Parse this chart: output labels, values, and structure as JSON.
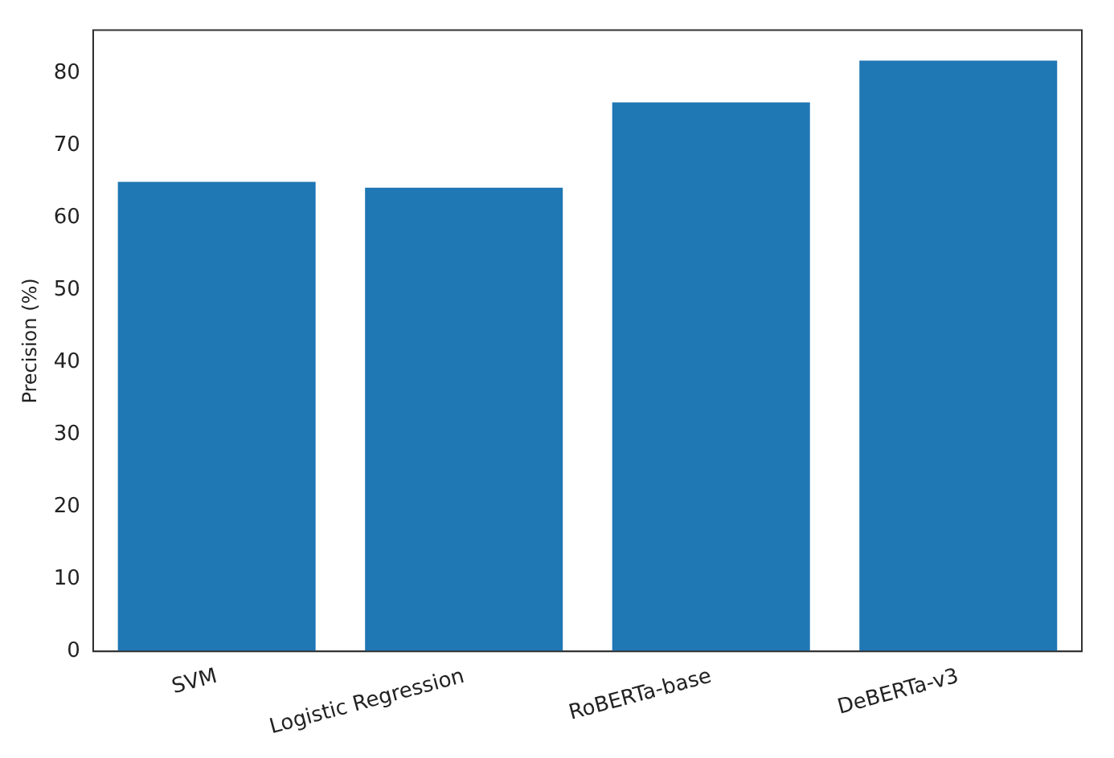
{
  "chart_data": {
    "type": "bar",
    "ylabel": "Precision (%)",
    "categories": [
      "SVM",
      "Logistic Regression",
      "RoBERTa-base",
      "DeBERTa-v3"
    ],
    "values": [
      65,
      64.2,
      76,
      81.8
    ],
    "color": "#1f77b4",
    "ylim": [
      0,
      86
    ],
    "yticks": [
      0,
      10,
      20,
      30,
      40,
      50,
      60,
      70,
      80
    ],
    "grid": false,
    "legend": false
  }
}
